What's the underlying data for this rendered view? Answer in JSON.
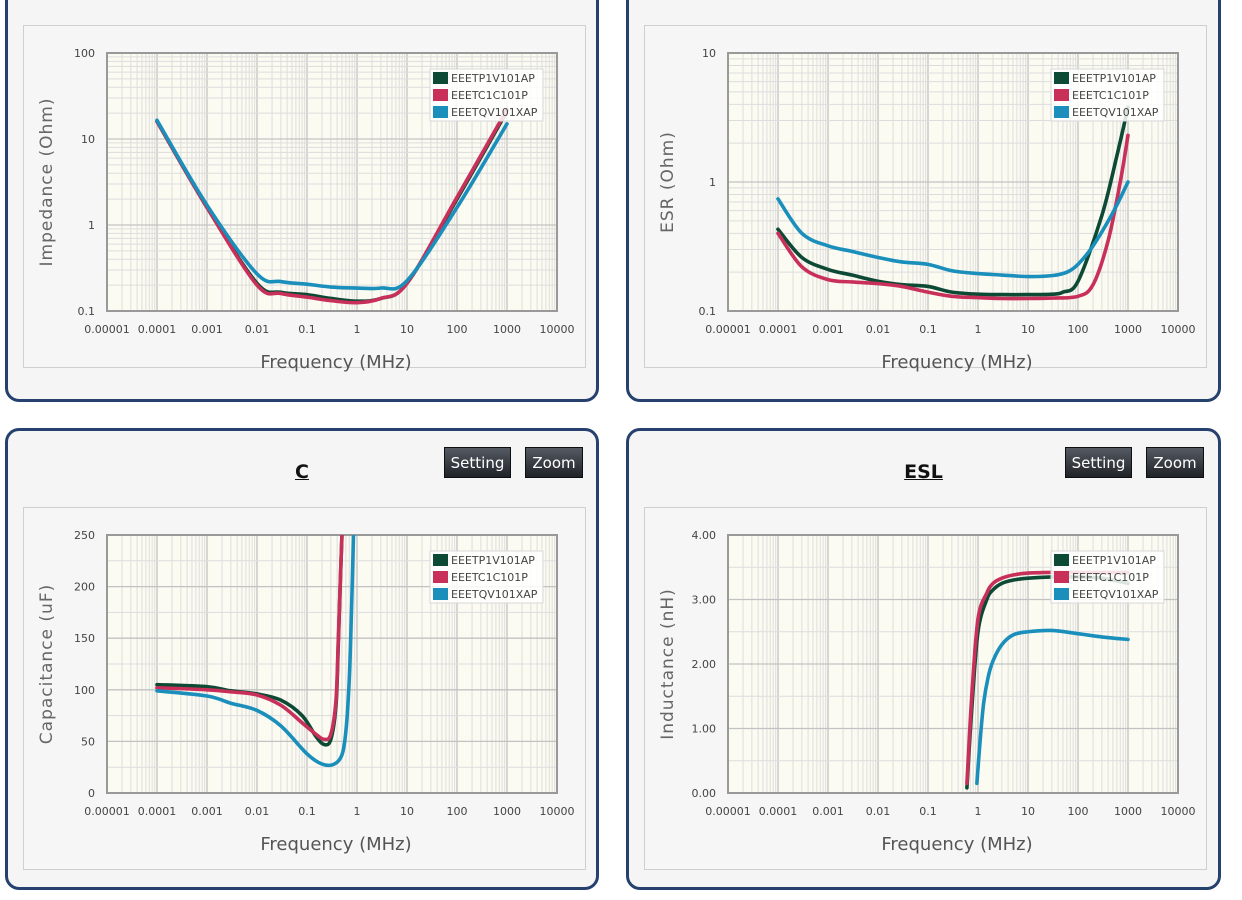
{
  "colors": {
    "panel_border": "#26416e",
    "plot_bg": "#fcfbf2",
    "grid": "#cccccc",
    "axis": "#999999"
  },
  "buttons": {
    "setting": "Setting",
    "zoom": "Zoom"
  },
  "chart_data": [
    {
      "type": "line",
      "title": "",
      "xlabel": "Frequency (MHz)",
      "ylabel": "Impedance (Ohm)",
      "xscale": "log",
      "yscale": "log",
      "xlim": [
        1e-05,
        10000
      ],
      "ylim": [
        0.1,
        100
      ],
      "xticks": [
        "0.00001",
        "0.0001",
        "0.001",
        "0.01",
        "0.1",
        "1",
        "10",
        "100",
        "1000",
        "10000"
      ],
      "yticks": [
        "0.1",
        "1",
        "10",
        "100"
      ],
      "grid": true,
      "legend_position": "top-right",
      "series": [
        {
          "name": "EEETP1V101AP",
          "color": "#0d4a35",
          "x": [
            0.0001,
            0.001,
            0.01,
            0.03,
            0.1,
            0.3,
            1,
            3,
            10,
            100,
            1000
          ],
          "y": [
            16,
            1.6,
            0.21,
            0.165,
            0.155,
            0.14,
            0.13,
            0.14,
            0.21,
            2.0,
            21
          ]
        },
        {
          "name": "EEETC1C101P",
          "color": "#c8305a",
          "x": [
            0.0001,
            0.001,
            0.01,
            0.03,
            0.1,
            0.3,
            1,
            3,
            10,
            100,
            1000
          ],
          "y": [
            16,
            1.6,
            0.2,
            0.16,
            0.145,
            0.132,
            0.125,
            0.14,
            0.21,
            2.1,
            22
          ]
        },
        {
          "name": "EEETQV101XAP",
          "color": "#1a8fbb",
          "x": [
            0.0001,
            0.001,
            0.01,
            0.03,
            0.1,
            0.3,
            1,
            3,
            10,
            100,
            1000
          ],
          "y": [
            16.5,
            1.7,
            0.27,
            0.22,
            0.205,
            0.19,
            0.185,
            0.185,
            0.225,
            1.6,
            15
          ]
        }
      ]
    },
    {
      "type": "line",
      "title": "",
      "xlabel": "Frequency (MHz)",
      "ylabel": "ESR (Ohm)",
      "xscale": "log",
      "yscale": "log",
      "xlim": [
        1e-05,
        10000
      ],
      "ylim": [
        0.1,
        10
      ],
      "xticks": [
        "0.00001",
        "0.0001",
        "0.001",
        "0.01",
        "0.1",
        "1",
        "10",
        "100",
        "1000",
        "10000"
      ],
      "yticks": [
        "0.1",
        "1",
        "10"
      ],
      "grid": true,
      "legend_position": "top-right",
      "series": [
        {
          "name": "EEETP1V101AP",
          "color": "#0d4a35",
          "x": [
            0.0001,
            0.0003,
            0.001,
            0.003,
            0.01,
            0.03,
            0.1,
            0.3,
            1,
            3,
            10,
            30,
            50,
            100,
            300,
            600,
            1000
          ],
          "y": [
            0.43,
            0.26,
            0.21,
            0.19,
            0.17,
            0.16,
            0.155,
            0.14,
            0.135,
            0.134,
            0.134,
            0.135,
            0.14,
            0.17,
            0.55,
            1.6,
            3.8
          ]
        },
        {
          "name": "EEETC1C101P",
          "color": "#c8305a",
          "x": [
            0.0001,
            0.0003,
            0.001,
            0.003,
            0.01,
            0.03,
            0.1,
            0.3,
            1,
            3,
            10,
            30,
            100,
            200,
            400,
            700,
            1000
          ],
          "y": [
            0.4,
            0.22,
            0.175,
            0.168,
            0.163,
            0.155,
            0.14,
            0.13,
            0.127,
            0.125,
            0.125,
            0.126,
            0.13,
            0.16,
            0.35,
            1.0,
            2.3
          ]
        },
        {
          "name": "EEETQV101XAP",
          "color": "#1a8fbb",
          "x": [
            0.0001,
            0.0003,
            0.001,
            0.003,
            0.01,
            0.03,
            0.1,
            0.3,
            1,
            3,
            10,
            30,
            60,
            100,
            200,
            500,
            1000
          ],
          "y": [
            0.74,
            0.4,
            0.32,
            0.29,
            0.26,
            0.24,
            0.23,
            0.205,
            0.195,
            0.19,
            0.185,
            0.188,
            0.2,
            0.23,
            0.32,
            0.58,
            1.0
          ]
        }
      ]
    },
    {
      "type": "line",
      "title": "C",
      "xlabel": "Frequency (MHz)",
      "ylabel": "Capacitance (uF)",
      "xscale": "log",
      "yscale": "linear",
      "xlim": [
        1e-05,
        10000
      ],
      "ylim": [
        0,
        250
      ],
      "xticks": [
        "0.00001",
        "0.0001",
        "0.001",
        "0.01",
        "0.1",
        "1",
        "10",
        "100",
        "1000",
        "10000"
      ],
      "yticks": [
        "0",
        "50",
        "100",
        "150",
        "200",
        "250"
      ],
      "grid": true,
      "legend_position": "top-right",
      "series": [
        {
          "name": "EEETP1V101AP",
          "color": "#0d4a35",
          "x": [
            0.0001,
            0.001,
            0.003,
            0.01,
            0.03,
            0.08,
            0.15,
            0.22,
            0.3,
            0.38,
            0.42,
            0.46,
            0.5
          ],
          "y": [
            105,
            103,
            99,
            96,
            90,
            75,
            55,
            47,
            52,
            85,
            140,
            200,
            250
          ]
        },
        {
          "name": "EEETC1C101P",
          "color": "#c8305a",
          "x": [
            0.0001,
            0.001,
            0.003,
            0.01,
            0.03,
            0.08,
            0.15,
            0.22,
            0.3,
            0.38,
            0.42,
            0.46,
            0.5
          ],
          "y": [
            102,
            100,
            98,
            95,
            85,
            68,
            57,
            52,
            57,
            90,
            145,
            200,
            250
          ]
        },
        {
          "name": "EEETQV101XAP",
          "color": "#1a8fbb",
          "x": [
            0.0001,
            0.001,
            0.003,
            0.01,
            0.03,
            0.1,
            0.2,
            0.35,
            0.5,
            0.6,
            0.7,
            0.78,
            0.85
          ],
          "y": [
            99,
            94,
            87,
            80,
            65,
            38,
            28,
            28,
            37,
            60,
            110,
            180,
            250
          ]
        }
      ]
    },
    {
      "type": "line",
      "title": "ESL",
      "xlabel": "Frequency (MHz)",
      "ylabel": "Inductance (nH)",
      "xscale": "log",
      "yscale": "linear",
      "xlim": [
        1e-05,
        10000
      ],
      "ylim": [
        0,
        4
      ],
      "xticks": [
        "0.00001",
        "0.0001",
        "0.001",
        "0.01",
        "0.1",
        "1",
        "10",
        "100",
        "1000",
        "10000"
      ],
      "yticks": [
        "0.00",
        "1.00",
        "2.00",
        "3.00",
        "4.00"
      ],
      "grid": true,
      "legend_position": "top-right",
      "series": [
        {
          "name": "EEETP1V101AP",
          "color": "#0d4a35",
          "x": [
            0.6,
            0.75,
            1,
            1.5,
            2,
            3,
            5,
            10,
            30,
            100,
            300,
            1000
          ],
          "y": [
            0.08,
            1.3,
            2.5,
            3.0,
            3.15,
            3.25,
            3.3,
            3.33,
            3.35,
            3.35,
            3.33,
            3.25
          ]
        },
        {
          "name": "EEETC1C101P",
          "color": "#c8305a",
          "x": [
            0.6,
            0.75,
            1,
            1.5,
            2,
            3,
            5,
            10,
            30,
            100,
            300,
            1000
          ],
          "y": [
            0.15,
            1.5,
            2.7,
            3.1,
            3.25,
            3.33,
            3.38,
            3.41,
            3.42,
            3.42,
            3.42,
            3.42
          ]
        },
        {
          "name": "EEETQV101XAP",
          "color": "#1a8fbb",
          "x": [
            0.95,
            1.1,
            1.3,
            1.6,
            2,
            3,
            5,
            10,
            30,
            100,
            300,
            1000
          ],
          "y": [
            0.15,
            0.8,
            1.4,
            1.8,
            2.05,
            2.3,
            2.45,
            2.5,
            2.52,
            2.47,
            2.42,
            2.38
          ]
        }
      ]
    }
  ]
}
